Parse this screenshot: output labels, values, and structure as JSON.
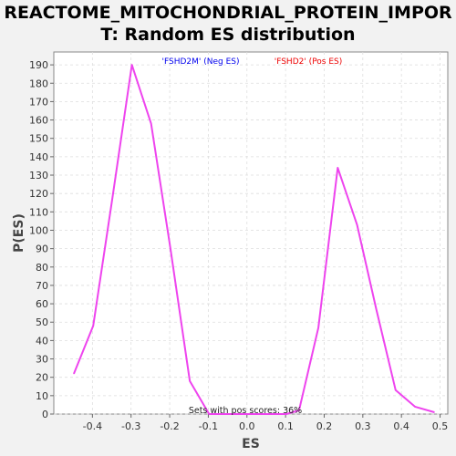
{
  "title_line1": "REACTOME_MITOCHONDRIAL_PROTEIN_IMPOR",
  "title_line2": "T: Random ES distribution",
  "chart_data": {
    "type": "line",
    "title": "REACTOME_MITOCHONDRIAL_PROTEIN_IMPORT: Random ES distribution",
    "xlabel": "ES",
    "ylabel": "P(ES)",
    "xlim": [
      -0.5,
      0.52
    ],
    "ylim": [
      0,
      197
    ],
    "xticks": [
      -0.4,
      -0.3,
      -0.2,
      -0.1,
      0.0,
      0.1,
      0.2,
      0.3,
      0.4,
      0.5
    ],
    "xtick_labels": [
      "-0.4",
      "-0.3",
      "-0.2",
      "-0.1",
      "0.0",
      "0.1",
      "0.2",
      "0.3",
      "0.4",
      "0.5"
    ],
    "yticks": [
      0,
      10,
      20,
      30,
      40,
      50,
      60,
      70,
      80,
      90,
      100,
      110,
      120,
      130,
      140,
      150,
      160,
      170,
      180,
      190
    ],
    "ytick_labels": [
      "0",
      "10",
      "20",
      "30",
      "40",
      "50",
      "60",
      "70",
      "80",
      "90",
      "100",
      "110",
      "120",
      "130",
      "140",
      "150",
      "160",
      "170",
      "180",
      "190"
    ],
    "grid": true,
    "legend": [
      {
        "label": "'FSHD2M' (Neg ES)",
        "color": "#0000ee"
      },
      {
        "label": "'FSHD2' (Pos ES)",
        "color": "#ee0000"
      }
    ],
    "annotation": "Sets with pos scores: 36%",
    "series": [
      {
        "color": "#ee44ee",
        "x": [
          -0.448,
          -0.398,
          -0.348,
          -0.298,
          -0.248,
          -0.198,
          -0.148,
          -0.098,
          -0.048,
          0.002,
          0.052,
          0.102,
          0.135,
          0.185,
          0.235,
          0.285,
          0.335,
          0.385,
          0.435,
          0.485
        ],
        "y": [
          22,
          48,
          118,
          190,
          158,
          90,
          18,
          0,
          0,
          0,
          0,
          0,
          2,
          47,
          134,
          103,
          57,
          13,
          4,
          1
        ]
      }
    ]
  }
}
